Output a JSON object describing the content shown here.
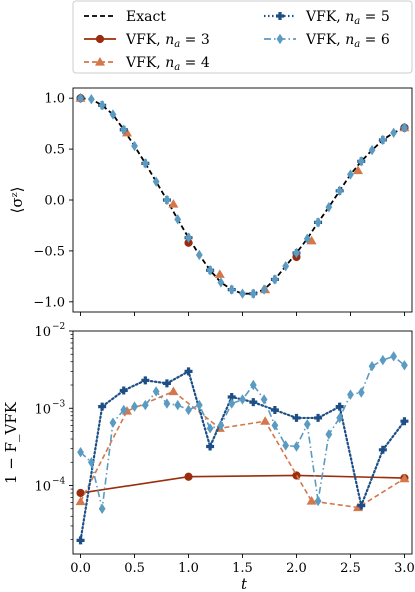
{
  "legend": {
    "entries": [
      {
        "id": "exact",
        "label": "Exact"
      },
      {
        "id": "na3",
        "label": "VFK, ",
        "sub_label": "n",
        "sub_index": "a",
        "sub_rest": " = 3"
      },
      {
        "id": "na4",
        "label": "VFK, ",
        "sub_label": "n",
        "sub_index": "a",
        "sub_rest": " = 4"
      },
      {
        "id": "na5",
        "label": "VFK, ",
        "sub_label": "n",
        "sub_index": "a",
        "sub_rest": " = 5"
      },
      {
        "id": "na6",
        "label": "VFK, ",
        "sub_label": "n",
        "sub_index": "a",
        "sub_rest": " = 6"
      }
    ],
    "placement": "top, above panels (2 columns)"
  },
  "colors": {
    "exact": "#000000",
    "na3": "#9b2d0e",
    "na4": "#d4774a",
    "na5": "#1d4f86",
    "na6": "#5b9bc2"
  },
  "chart_data": [
    {
      "type": "line",
      "ylabel": "⟨σᶻ⟩",
      "xlim": [
        -0.07,
        3.07
      ],
      "ylim": [
        -1.1,
        1.1
      ],
      "yticks": [
        "−1.0",
        "−0.5",
        "0.0",
        "0.5",
        "1.0"
      ],
      "ytick_values": [
        -1.0,
        -0.5,
        0.0,
        0.5,
        1.0
      ],
      "series": [
        {
          "name": "Exact",
          "id": "exact",
          "style": "dashed",
          "x": [
            0,
            0.1,
            0.2,
            0.3,
            0.4,
            0.5,
            0.6,
            0.7,
            0.8,
            0.9,
            1.0,
            1.1,
            1.2,
            1.3,
            1.4,
            1.5,
            1.6,
            1.7,
            1.8,
            1.9,
            2.0,
            2.1,
            2.2,
            2.3,
            2.4,
            2.5,
            2.6,
            2.7,
            2.8,
            2.9,
            3.0
          ],
          "y": [
            1.0,
            0.99,
            0.93,
            0.84,
            0.69,
            0.53,
            0.36,
            0.18,
            0.0,
            -0.19,
            -0.37,
            -0.54,
            -0.69,
            -0.81,
            -0.88,
            -0.92,
            -0.92,
            -0.88,
            -0.78,
            -0.65,
            -0.52,
            -0.38,
            -0.22,
            -0.07,
            0.09,
            0.25,
            0.38,
            0.49,
            0.59,
            0.66,
            0.71
          ]
        },
        {
          "name": "VFK, n_a = 3",
          "id": "na3",
          "marker": "circle",
          "x": [
            0.0,
            1.0,
            2.0,
            3.0
          ],
          "y": [
            1.0,
            -0.42,
            -0.56,
            0.71
          ]
        },
        {
          "name": "VFK, n_a = 4",
          "id": "na4",
          "marker": "triangle",
          "x": [
            0.0,
            0.43,
            0.86,
            1.29,
            1.71,
            2.14,
            2.57,
            3.0
          ],
          "y": [
            1.0,
            0.66,
            -0.04,
            -0.73,
            -0.88,
            -0.4,
            0.29,
            0.71
          ]
        },
        {
          "name": "VFK, n_a = 5",
          "id": "na5",
          "marker": "plus",
          "x": [
            0.0,
            0.2,
            0.4,
            0.6,
            0.8,
            1.0,
            1.2,
            1.4,
            1.6,
            1.8,
            2.0,
            2.2,
            2.4,
            2.6,
            2.8,
            3.0
          ],
          "y": [
            1.0,
            0.93,
            0.69,
            0.36,
            0.0,
            -0.37,
            -0.69,
            -0.88,
            -0.92,
            -0.78,
            -0.52,
            -0.22,
            0.09,
            0.38,
            0.59,
            0.71
          ]
        },
        {
          "name": "VFK, n_a = 6",
          "id": "na6",
          "marker": "diamond",
          "x": [
            0.0,
            0.1,
            0.2,
            0.3,
            0.4,
            0.5,
            0.6,
            0.7,
            0.8,
            0.9,
            1.0,
            1.1,
            1.2,
            1.3,
            1.4,
            1.5,
            1.6,
            1.7,
            1.8,
            1.9,
            2.0,
            2.1,
            2.2,
            2.3,
            2.4,
            2.5,
            2.6,
            2.7,
            2.8,
            2.9,
            3.0
          ],
          "y": [
            1.0,
            0.99,
            0.93,
            0.84,
            0.69,
            0.53,
            0.36,
            0.18,
            0.0,
            -0.19,
            -0.37,
            -0.54,
            -0.69,
            -0.81,
            -0.88,
            -0.92,
            -0.92,
            -0.88,
            -0.78,
            -0.65,
            -0.52,
            -0.38,
            -0.22,
            -0.07,
            0.09,
            0.25,
            0.38,
            0.49,
            0.59,
            0.66,
            0.71
          ]
        }
      ]
    },
    {
      "type": "line",
      "xlabel": "t",
      "ylabel": "1 − F_VFK",
      "yscale": "log",
      "xlim": [
        -0.07,
        3.07
      ],
      "ylim": [
        1.3e-05,
        0.01
      ],
      "xticks": [
        "0.0",
        "0.5",
        "1.0",
        "1.5",
        "2.0",
        "2.5",
        "3.0"
      ],
      "xtick_values": [
        0,
        0.5,
        1.0,
        1.5,
        2.0,
        2.5,
        3.0
      ],
      "yticks": [
        "10",
        "10",
        "10"
      ],
      "ytick_exps": [
        "−4",
        "−3",
        "−2"
      ],
      "ytick_values": [
        0.0001,
        0.001,
        0.01
      ],
      "series": [
        {
          "name": "VFK, n_a = 3",
          "id": "na3",
          "marker": "circle",
          "style": "solid",
          "x": [
            0.0,
            1.0,
            2.0,
            3.0
          ],
          "y": [
            8e-05,
            0.00013,
            0.000135,
            0.000125
          ]
        },
        {
          "name": "VFK, n_a = 4",
          "id": "na4",
          "marker": "triangle",
          "style": "dashed",
          "x": [
            0.0,
            0.43,
            0.86,
            1.29,
            1.71,
            2.14,
            2.57,
            3.0
          ],
          "y": [
            6.2e-05,
            0.00092,
            0.00165,
            0.00055,
            0.00068,
            6.3e-05,
            5.2e-05,
            0.000123
          ]
        },
        {
          "name": "VFK, n_a = 5",
          "id": "na5",
          "marker": "plus",
          "style": "dotted",
          "x": [
            0.0,
            0.2,
            0.4,
            0.6,
            0.8,
            1.0,
            1.2,
            1.4,
            1.6,
            1.8,
            2.0,
            2.2,
            2.4,
            2.6,
            2.8,
            3.0
          ],
          "y": [
            1.95e-05,
            0.00105,
            0.0017,
            0.0023,
            0.0021,
            0.003,
            0.00032,
            0.0014,
            0.0012,
            0.00095,
            0.00075,
            0.00075,
            0.00105,
            5.5e-05,
            0.00029,
            0.00068
          ]
        },
        {
          "name": "VFK, n_a = 6",
          "id": "na6",
          "marker": "diamond",
          "style": "dashdot",
          "x": [
            0.0,
            0.1,
            0.2,
            0.3,
            0.4,
            0.5,
            0.6,
            0.7,
            0.8,
            0.9,
            1.0,
            1.1,
            1.2,
            1.3,
            1.4,
            1.5,
            1.6,
            1.7,
            1.8,
            1.9,
            2.0,
            2.1,
            2.2,
            2.3,
            2.4,
            2.5,
            2.6,
            2.7,
            2.8,
            2.9,
            3.0
          ],
          "y": [
            0.00027,
            0.0002,
            5e-05,
            0.00065,
            0.00095,
            0.00105,
            0.0011,
            0.00165,
            0.00115,
            0.0011,
            0.00095,
            0.0011,
            0.00055,
            0.0006,
            0.00115,
            0.0013,
            0.002,
            0.0013,
            0.0006,
            0.00033,
            0.00032,
            0.00062,
            6.3e-05,
            0.00046,
            0.00075,
            0.0015,
            0.0016,
            0.0035,
            0.0042,
            0.0047,
            0.0036
          ]
        }
      ]
    }
  ]
}
